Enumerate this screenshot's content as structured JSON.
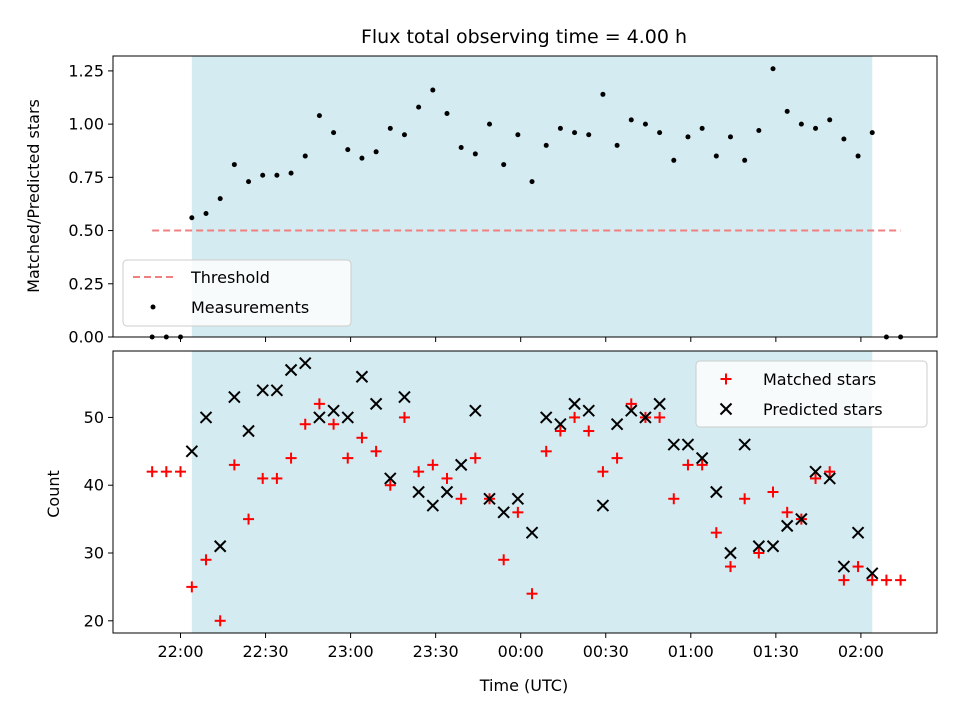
{
  "colors": {
    "observing_window": "#d4ebf1",
    "threshold": "#f08080",
    "measurements": "#000000",
    "matched": "#ff0000",
    "predicted": "#000000"
  },
  "chart_data": [
    {
      "type": "scatter",
      "title": "Flux total observing time = 4.00 h",
      "ylabel": "Matched/Predicted stars",
      "xlabel": "",
      "ylim": [
        0,
        1.32
      ],
      "yticks": [
        "0.00",
        "0.25",
        "0.50",
        "0.75",
        "1.00",
        "1.25"
      ],
      "shaded_window": {
        "start": "22:04",
        "end": "02:04"
      },
      "threshold": {
        "name": "Threshold",
        "y": 0.5,
        "x_start": "21:50",
        "x_end": "02:14"
      },
      "legend_location": "lower-left",
      "series": [
        {
          "name": "Measurements",
          "marker": "dot",
          "points": [
            [
              "21:50",
              0.0
            ],
            [
              "21:55",
              0.0
            ],
            [
              "22:00",
              0.0
            ],
            [
              "22:04",
              0.56
            ],
            [
              "22:09",
              0.58
            ],
            [
              "22:14",
              0.65
            ],
            [
              "22:19",
              0.81
            ],
            [
              "22:24",
              0.73
            ],
            [
              "22:29",
              0.76
            ],
            [
              "22:34",
              0.76
            ],
            [
              "22:39",
              0.77
            ],
            [
              "22:44",
              0.85
            ],
            [
              "22:49",
              1.04
            ],
            [
              "22:54",
              0.96
            ],
            [
              "22:59",
              0.88
            ],
            [
              "23:04",
              0.84
            ],
            [
              "23:09",
              0.87
            ],
            [
              "23:14",
              0.98
            ],
            [
              "23:19",
              0.95
            ],
            [
              "23:24",
              1.08
            ],
            [
              "23:29",
              1.16
            ],
            [
              "23:34",
              1.05
            ],
            [
              "23:39",
              0.89
            ],
            [
              "23:44",
              0.86
            ],
            [
              "23:49",
              1.0
            ],
            [
              "23:54",
              0.81
            ],
            [
              "23:59",
              0.95
            ],
            [
              "00:04",
              0.73
            ],
            [
              "00:09",
              0.9
            ],
            [
              "00:14",
              0.98
            ],
            [
              "00:19",
              0.96
            ],
            [
              "00:24",
              0.95
            ],
            [
              "00:29",
              1.14
            ],
            [
              "00:34",
              0.9
            ],
            [
              "00:39",
              1.02
            ],
            [
              "00:44",
              1.0
            ],
            [
              "00:49",
              0.96
            ],
            [
              "00:54",
              0.83
            ],
            [
              "00:59",
              0.94
            ],
            [
              "01:04",
              0.98
            ],
            [
              "01:09",
              0.85
            ],
            [
              "01:14",
              0.94
            ],
            [
              "01:19",
              0.83
            ],
            [
              "01:24",
              0.97
            ],
            [
              "01:29",
              1.26
            ],
            [
              "01:34",
              1.06
            ],
            [
              "01:39",
              1.0
            ],
            [
              "01:44",
              0.98
            ],
            [
              "01:49",
              1.02
            ],
            [
              "01:54",
              0.93
            ],
            [
              "01:59",
              0.85
            ],
            [
              "02:04",
              0.96
            ],
            [
              "02:09",
              0.0
            ],
            [
              "02:14",
              0.0
            ]
          ]
        }
      ]
    },
    {
      "type": "scatter",
      "title": "",
      "ylabel": "Count",
      "xlabel": "Time (UTC)",
      "ylim": [
        18.2,
        59.8
      ],
      "yticks": [
        "20",
        "30",
        "40",
        "50"
      ],
      "xticks": [
        "22:00",
        "22:30",
        "23:00",
        "23:30",
        "00:00",
        "00:30",
        "01:00",
        "01:30",
        "02:00"
      ],
      "shaded_window": {
        "start": "22:04",
        "end": "02:04"
      },
      "legend_location": "upper-right",
      "series": [
        {
          "name": "Matched stars",
          "marker": "plus",
          "points": [
            [
              "21:50",
              42
            ],
            [
              "21:55",
              42
            ],
            [
              "22:00",
              42
            ],
            [
              "22:04",
              25
            ],
            [
              "22:09",
              29
            ],
            [
              "22:14",
              20
            ],
            [
              "22:19",
              43
            ],
            [
              "22:24",
              35
            ],
            [
              "22:29",
              41
            ],
            [
              "22:34",
              41
            ],
            [
              "22:39",
              44
            ],
            [
              "22:44",
              49
            ],
            [
              "22:49",
              52
            ],
            [
              "22:54",
              49
            ],
            [
              "22:59",
              44
            ],
            [
              "23:04",
              47
            ],
            [
              "23:09",
              45
            ],
            [
              "23:14",
              40
            ],
            [
              "23:19",
              50
            ],
            [
              "23:24",
              42
            ],
            [
              "23:29",
              43
            ],
            [
              "23:34",
              41
            ],
            [
              "23:39",
              38
            ],
            [
              "23:44",
              44
            ],
            [
              "23:49",
              38
            ],
            [
              "23:54",
              29
            ],
            [
              "23:59",
              36
            ],
            [
              "00:04",
              24
            ],
            [
              "00:09",
              45
            ],
            [
              "00:14",
              48
            ],
            [
              "00:19",
              50
            ],
            [
              "00:24",
              48
            ],
            [
              "00:29",
              42
            ],
            [
              "00:34",
              44
            ],
            [
              "00:39",
              52
            ],
            [
              "00:44",
              50
            ],
            [
              "00:49",
              50
            ],
            [
              "00:54",
              38
            ],
            [
              "00:59",
              43
            ],
            [
              "01:04",
              43
            ],
            [
              "01:09",
              33
            ],
            [
              "01:14",
              28
            ],
            [
              "01:19",
              38
            ],
            [
              "01:24",
              30
            ],
            [
              "01:29",
              39
            ],
            [
              "01:34",
              36
            ],
            [
              "01:39",
              35
            ],
            [
              "01:44",
              41
            ],
            [
              "01:49",
              42
            ],
            [
              "01:54",
              26
            ],
            [
              "01:59",
              28
            ],
            [
              "02:04",
              26
            ],
            [
              "02:09",
              26
            ],
            [
              "02:14",
              26
            ]
          ]
        },
        {
          "name": "Predicted stars",
          "marker": "x",
          "points": [
            [
              "22:04",
              45
            ],
            [
              "22:09",
              50
            ],
            [
              "22:14",
              31
            ],
            [
              "22:19",
              53
            ],
            [
              "22:24",
              48
            ],
            [
              "22:29",
              54
            ],
            [
              "22:34",
              54
            ],
            [
              "22:39",
              57
            ],
            [
              "22:44",
              58
            ],
            [
              "22:49",
              50
            ],
            [
              "22:54",
              51
            ],
            [
              "22:59",
              50
            ],
            [
              "23:04",
              56
            ],
            [
              "23:09",
              52
            ],
            [
              "23:14",
              41
            ],
            [
              "23:19",
              53
            ],
            [
              "23:24",
              39
            ],
            [
              "23:29",
              37
            ],
            [
              "23:34",
              39
            ],
            [
              "23:39",
              43
            ],
            [
              "23:44",
              51
            ],
            [
              "23:49",
              38
            ],
            [
              "23:54",
              36
            ],
            [
              "23:59",
              38
            ],
            [
              "00:04",
              33
            ],
            [
              "00:09",
              50
            ],
            [
              "00:14",
              49
            ],
            [
              "00:19",
              52
            ],
            [
              "00:24",
              51
            ],
            [
              "00:29",
              37
            ],
            [
              "00:34",
              49
            ],
            [
              "00:39",
              51
            ],
            [
              "00:44",
              50
            ],
            [
              "00:49",
              52
            ],
            [
              "00:54",
              46
            ],
            [
              "00:59",
              46
            ],
            [
              "01:04",
              44
            ],
            [
              "01:09",
              39
            ],
            [
              "01:14",
              30
            ],
            [
              "01:19",
              46
            ],
            [
              "01:24",
              31
            ],
            [
              "01:29",
              31
            ],
            [
              "01:34",
              34
            ],
            [
              "01:39",
              35
            ],
            [
              "01:44",
              42
            ],
            [
              "01:49",
              41
            ],
            [
              "01:54",
              28
            ],
            [
              "01:59",
              33
            ],
            [
              "02:04",
              27
            ]
          ]
        }
      ]
    }
  ]
}
